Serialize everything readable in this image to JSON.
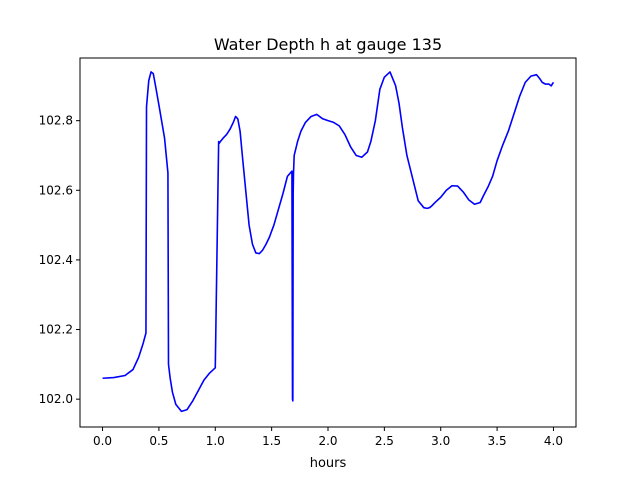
{
  "chart_data": {
    "type": "line",
    "title": "Water Depth h at gauge 135",
    "xlabel": "hours",
    "ylabel": "",
    "xlim": [
      -0.2,
      4.2
    ],
    "ylim": [
      101.92,
      102.98
    ],
    "grid": false,
    "legend": "none",
    "x_ticks": [
      0.0,
      0.5,
      1.0,
      1.5,
      2.0,
      2.5,
      3.0,
      3.5,
      4.0
    ],
    "x_tick_labels": [
      "0.0",
      "0.5",
      "1.0",
      "1.5",
      "2.0",
      "2.5",
      "3.0",
      "3.5",
      "4.0"
    ],
    "y_ticks": [
      102.0,
      102.2,
      102.4,
      102.6,
      102.8
    ],
    "y_tick_labels": [
      "102.0",
      "102.2",
      "102.4",
      "102.6",
      "102.8"
    ],
    "series": [
      {
        "color": "#0000ff",
        "x": [
          0.0,
          0.1,
          0.2,
          0.27,
          0.32,
          0.36,
          0.385,
          0.39,
          0.41,
          0.43,
          0.45,
          0.47,
          0.5,
          0.55,
          0.58,
          0.585,
          0.6,
          0.62,
          0.65,
          0.7,
          0.75,
          0.8,
          0.85,
          0.9,
          0.95,
          1.0,
          1.03,
          1.035,
          1.05,
          1.07,
          1.1,
          1.13,
          1.16,
          1.18,
          1.2,
          1.22,
          1.24,
          1.27,
          1.3,
          1.33,
          1.36,
          1.39,
          1.42,
          1.45,
          1.48,
          1.52,
          1.56,
          1.6,
          1.64,
          1.68,
          1.685,
          1.688,
          1.691,
          1.694,
          1.7,
          1.73,
          1.76,
          1.8,
          1.85,
          1.9,
          1.95,
          2.0,
          2.05,
          2.1,
          2.15,
          2.2,
          2.25,
          2.3,
          2.35,
          2.38,
          2.42,
          2.46,
          2.5,
          2.55,
          2.6,
          2.63,
          2.66,
          2.7,
          2.75,
          2.8,
          2.85,
          2.88,
          2.9,
          2.92,
          2.95,
          3.0,
          3.05,
          3.1,
          3.15,
          3.2,
          3.25,
          3.3,
          3.35,
          3.38,
          3.42,
          3.46,
          3.5,
          3.55,
          3.6,
          3.65,
          3.7,
          3.75,
          3.8,
          3.85,
          3.88,
          3.9,
          3.93,
          3.96,
          3.98,
          4.0
        ],
        "y": [
          102.06,
          102.062,
          102.068,
          102.085,
          102.12,
          102.16,
          102.19,
          102.84,
          102.915,
          102.94,
          102.935,
          102.9,
          102.845,
          102.75,
          102.65,
          102.1,
          102.06,
          102.02,
          101.985,
          101.965,
          101.97,
          101.995,
          102.025,
          102.055,
          102.075,
          102.09,
          102.74,
          102.735,
          102.742,
          102.75,
          102.76,
          102.775,
          102.795,
          102.812,
          102.805,
          102.77,
          102.7,
          102.6,
          102.5,
          102.445,
          102.42,
          102.418,
          102.428,
          102.445,
          102.465,
          102.5,
          102.545,
          102.59,
          102.64,
          102.655,
          102.0,
          101.995,
          102.59,
          102.65,
          102.7,
          102.74,
          102.77,
          102.795,
          102.812,
          102.818,
          102.806,
          102.8,
          102.795,
          102.785,
          102.76,
          102.725,
          102.7,
          102.695,
          102.71,
          102.74,
          102.8,
          102.89,
          102.925,
          102.94,
          102.9,
          102.85,
          102.78,
          102.7,
          102.635,
          102.57,
          102.55,
          102.548,
          102.55,
          102.555,
          102.565,
          102.58,
          102.6,
          102.613,
          102.612,
          102.595,
          102.572,
          102.56,
          102.565,
          102.585,
          102.61,
          102.64,
          102.685,
          102.73,
          102.77,
          102.82,
          102.87,
          102.91,
          102.928,
          102.932,
          102.92,
          102.91,
          102.905,
          102.905,
          102.9,
          102.91
        ]
      }
    ]
  }
}
